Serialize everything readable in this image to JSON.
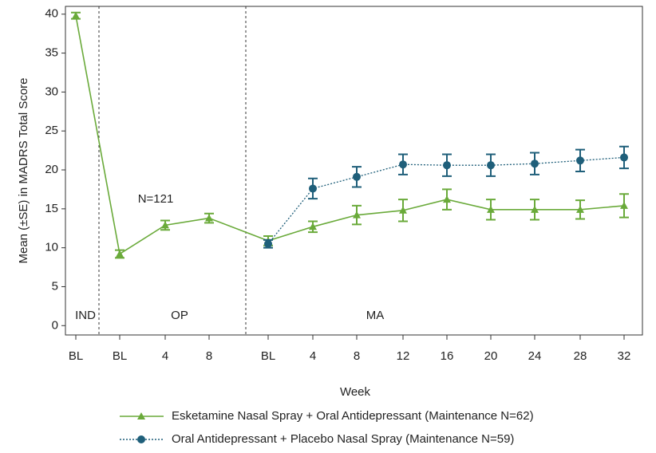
{
  "chart_data": {
    "type": "line",
    "y_label": "Mean (±SE) in MADRS Total Score",
    "x_label": "Week",
    "annotation": "N=121",
    "phase_labels": [
      "IND",
      "OP",
      "MA"
    ],
    "categories": [
      "BL",
      "BL",
      "4",
      "8",
      "BL",
      "4",
      "8",
      "12",
      "16",
      "20",
      "24",
      "28",
      "32"
    ],
    "ylim": [
      -1.2,
      41
    ],
    "yticks": [
      0,
      5,
      10,
      15,
      20,
      25,
      30,
      35,
      40
    ],
    "series": [
      {
        "name": "Esketamine Nasal Spray + Oral Antidepressant (Maintenance N=62)",
        "color": "#6aaa3a",
        "marker": "triangle",
        "dash": "solid",
        "values": [
          39.8,
          9.2,
          12.9,
          13.8,
          10.9,
          12.7,
          14.2,
          14.8,
          16.2,
          14.9,
          14.9,
          14.9,
          15.4
        ],
        "errors": [
          0.4,
          0.5,
          0.6,
          0.6,
          0.6,
          0.7,
          1.2,
          1.4,
          1.3,
          1.3,
          1.3,
          1.2,
          1.5
        ]
      },
      {
        "name": "Oral Antidepressant + Placebo Nasal Spray (Maintenance N=59)",
        "color": "#1f5f7a",
        "marker": "circle",
        "dash": "dotted",
        "values": [
          null,
          null,
          null,
          null,
          10.5,
          17.6,
          19.1,
          20.7,
          20.6,
          20.6,
          20.8,
          21.2,
          21.6
        ],
        "errors": [
          null,
          null,
          null,
          null,
          0.5,
          1.3,
          1.3,
          1.3,
          1.4,
          1.4,
          1.4,
          1.4,
          1.4
        ]
      }
    ]
  }
}
